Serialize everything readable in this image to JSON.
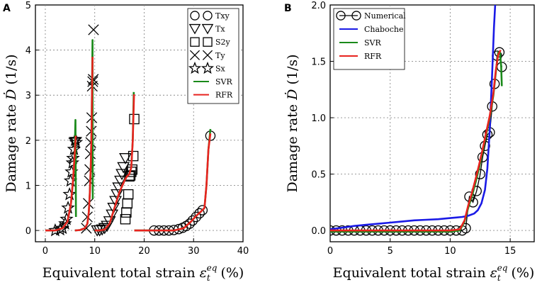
{
  "chart_data": [
    {
      "panel": "A",
      "type": "line",
      "title": "",
      "xlabel": "Equivalent total strain",
      "ylabel": "Damage rate",
      "xlabel_symbol": "ε",
      "xlabel_sub": "t",
      "xlabel_sup": "eq",
      "xlabel_unit": "(%)",
      "ylabel_symbol": "Ḋ",
      "ylabel_unit": "(1/s)",
      "xlim": [
        -2,
        40
      ],
      "ylim": [
        -0.25,
        5
      ],
      "xticks": [
        0,
        10,
        20,
        30,
        40
      ],
      "yticks": [
        0,
        1,
        2,
        3,
        4,
        5
      ],
      "grid": true,
      "legend_position": "top-right",
      "series": [
        {
          "name": "Txy",
          "marker": "circle",
          "x": [
            22,
            23,
            24,
            25,
            26,
            27,
            27.8,
            28.5,
            29.2,
            29.8,
            30.5,
            31.2,
            31.8,
            33.4
          ],
          "y": [
            0,
            0,
            0,
            0,
            0.01,
            0.03,
            0.06,
            0.1,
            0.15,
            0.22,
            0.3,
            0.38,
            0.45,
            2.1
          ]
        },
        {
          "name": "Tx",
          "marker": "triangle-down",
          "x": [
            10.5,
            11,
            11.5,
            12,
            12.5,
            13,
            13.5,
            13.8,
            14.2,
            14.5,
            14.8,
            15.2,
            15.5,
            15.8,
            16.2
          ],
          "y": [
            0,
            0,
            0.02,
            0.05,
            0.1,
            0.2,
            0.35,
            0.5,
            0.65,
            0.8,
            0.95,
            1.1,
            1.25,
            1.4,
            1.6
          ]
        },
        {
          "name": "S2y",
          "marker": "square",
          "x": [
            16.2,
            16.4,
            16.6,
            16.8,
            17,
            17.2,
            17.4,
            17.6,
            17.8,
            18
          ],
          "y": [
            0.25,
            0.4,
            0.6,
            0.8,
            1.2,
            1.22,
            1.3,
            1.35,
            1.65,
            2.47
          ]
        },
        {
          "name": "Ty",
          "marker": "x",
          "x": [
            8.3,
            8.5,
            8.7,
            8.9,
            9.0,
            9.1,
            9.2,
            9.3,
            9.4,
            9.5,
            9.6,
            9.7,
            9.75
          ],
          "y": [
            0.05,
            0.3,
            0.6,
            1.1,
            1.35,
            1.7,
            1.95,
            2.2,
            2.5,
            3.2,
            3.3,
            3.35,
            4.45
          ]
        },
        {
          "name": "Sx",
          "marker": "star",
          "x": [
            2,
            3,
            3.5,
            4,
            4.3,
            4.6,
            4.9,
            5.1,
            5.3,
            5.5,
            5.6,
            5.8,
            6.0,
            6.1,
            6.2
          ],
          "y": [
            0,
            0.02,
            0.05,
            0.15,
            0.25,
            0.5,
            0.8,
            1.1,
            1.3,
            1.5,
            1.6,
            1.8,
            2.0,
            2.02,
            1.95
          ]
        },
        {
          "name": "SVR",
          "line": "green",
          "segments": [
            {
              "x": [
                0,
                2,
                3.5,
                4.5,
                5.2,
                5.6,
                5.9,
                6.0,
                6.1,
                6.2
              ],
              "y": [
                0,
                0,
                0.05,
                0.2,
                0.6,
                1.1,
                1.6,
                2.0,
                2.45,
                0.3
              ]
            },
            {
              "x": [
                6,
                7,
                8,
                8.5,
                8.8,
                9.0,
                9.2,
                9.35,
                9.45,
                9.55,
                9.6
              ],
              "y": [
                0,
                0.01,
                0.05,
                0.15,
                0.4,
                0.8,
                1.4,
                2.2,
                3.2,
                4.22,
                0.7
              ]
            },
            {
              "x": [
                10,
                11,
                12,
                13,
                14,
                15,
                16,
                16.5,
                17,
                17.4,
                17.7,
                17.9
              ],
              "y": [
                0,
                0,
                0.02,
                0.15,
                0.5,
                0.85,
                1.1,
                1.2,
                1.25,
                1.4,
                2.0,
                3.07
              ]
            },
            {
              "x": [
                18,
                20,
                22,
                24,
                26,
                28,
                29.5,
                30.5,
                31.5,
                32.2,
                32.6,
                33,
                33.4
              ],
              "y": [
                0,
                0,
                0,
                0,
                0,
                0.05,
                0.2,
                0.32,
                0.42,
                0.5,
                1.0,
                1.8,
                2.25
              ]
            }
          ]
        },
        {
          "name": "RFR",
          "line": "red",
          "segments": [
            {
              "x": [
                0,
                2,
                3.5,
                4.5,
                5.2,
                5.6,
                5.9,
                6.05,
                6.15
              ],
              "y": [
                0,
                0,
                0.05,
                0.2,
                0.6,
                1.1,
                1.6,
                1.9,
                2.1
              ]
            },
            {
              "x": [
                6,
                7,
                8,
                8.5,
                8.8,
                9.0,
                9.2,
                9.35,
                9.45,
                9.55
              ],
              "y": [
                0,
                0.01,
                0.05,
                0.15,
                0.4,
                0.8,
                1.4,
                2.2,
                3.1,
                3.85
              ]
            },
            {
              "x": [
                10,
                11,
                12,
                13,
                14,
                15,
                16,
                16.5,
                17,
                17.4,
                17.7,
                17.95
              ],
              "y": [
                0,
                0,
                0.02,
                0.15,
                0.5,
                0.85,
                1.1,
                1.2,
                1.25,
                1.4,
                2.0,
                3.02
              ]
            },
            {
              "x": [
                18,
                20,
                22,
                24,
                26,
                28,
                29.5,
                30.5,
                31.5,
                32.2,
                32.6,
                33,
                33.4
              ],
              "y": [
                0,
                0,
                0,
                0,
                0,
                0.05,
                0.2,
                0.32,
                0.42,
                0.5,
                1.0,
                1.8,
                2.15
              ]
            }
          ]
        }
      ]
    },
    {
      "panel": "B",
      "type": "line",
      "title": "",
      "xlabel": "Equivalent total strain",
      "ylabel": "Damage rate",
      "xlabel_symbol": "ε",
      "xlabel_sub": "t",
      "xlabel_sup": "eq",
      "xlabel_unit": "(%)",
      "ylabel_symbol": "Ḋ",
      "ylabel_unit": "(1/s)",
      "xlim": [
        0,
        17
      ],
      "ylim": [
        -0.1,
        2.0
      ],
      "xticks": [
        0,
        5,
        10,
        15
      ],
      "xtick_labels": [
        "0",
        "5",
        "10",
        "15"
      ],
      "yticks": [
        0.0,
        0.5,
        1.0,
        1.5,
        2.0
      ],
      "ytick_labels": [
        "0.0",
        "0.5",
        "1.0",
        "1.5",
        "2.0"
      ],
      "grid": true,
      "legend_position": "top-left",
      "series": [
        {
          "name": "Numerical",
          "marker": "circle",
          "line": "black",
          "x": [
            0,
            0.5,
            1,
            1.5,
            2,
            2.5,
            3,
            3.5,
            4,
            4.5,
            5,
            5.5,
            6,
            6.5,
            7,
            7.5,
            8,
            8.5,
            9,
            9.5,
            10,
            10.5,
            11,
            11.3,
            11.6,
            11.9,
            12.2,
            12.5,
            12.7,
            12.9,
            13.1,
            13.3,
            13.5,
            13.7,
            13.9,
            14.1,
            14.3
          ],
          "y": [
            0,
            0,
            0,
            0,
            0,
            0,
            0,
            0,
            0,
            0,
            0,
            0,
            0,
            0,
            0,
            0,
            0,
            0,
            0,
            0,
            0,
            0,
            0,
            0.02,
            0.3,
            0.25,
            0.35,
            0.5,
            0.65,
            0.75,
            0.85,
            0.87,
            1.1,
            1.3,
            1.55,
            1.58,
            1.45
          ]
        },
        {
          "name": "Chaboche",
          "line": "blue",
          "x": [
            0,
            1,
            2,
            3,
            4,
            5,
            6,
            7,
            8,
            9,
            10,
            10.5,
            11,
            11.5,
            12,
            12.3,
            12.6,
            12.9,
            13.1,
            13.3,
            13.5,
            13.65,
            13.75
          ],
          "y": [
            0.01,
            0.025,
            0.04,
            0.05,
            0.06,
            0.07,
            0.08,
            0.09,
            0.095,
            0.1,
            0.11,
            0.115,
            0.12,
            0.13,
            0.15,
            0.18,
            0.24,
            0.36,
            0.55,
            0.9,
            1.4,
            1.8,
            2.0
          ]
        },
        {
          "name": "SVR",
          "line": "green",
          "x": [
            0,
            2,
            4,
            6,
            8,
            10,
            10.8,
            11.2,
            11.5,
            11.8,
            12.1,
            12.4,
            12.7,
            13.0,
            13.3,
            13.6,
            13.8,
            14.0,
            14.15,
            14.25,
            14.3
          ],
          "y": [
            -0.01,
            -0.01,
            -0.01,
            -0.01,
            -0.01,
            -0.01,
            0.0,
            0.08,
            0.2,
            0.3,
            0.42,
            0.55,
            0.7,
            0.85,
            1.0,
            1.2,
            1.4,
            1.58,
            1.58,
            1.45,
            1.28
          ]
        },
        {
          "name": "RFR",
          "line": "red",
          "x": [
            0,
            2,
            4,
            6,
            8,
            10,
            10.8,
            11.2,
            11.5,
            11.8,
            12.1,
            12.4,
            12.7,
            13.0,
            13.3,
            13.6,
            13.8,
            14.0,
            14.2
          ],
          "y": [
            0,
            0,
            0,
            0,
            0,
            0,
            0.01,
            0.09,
            0.22,
            0.33,
            0.45,
            0.58,
            0.72,
            0.87,
            1.02,
            1.22,
            1.42,
            1.56,
            1.6
          ]
        }
      ]
    }
  ],
  "colors": {
    "svr": "#1a8a1a",
    "rfr": "#e8231f",
    "chaboche": "#1a1ae6",
    "marker": "#000000",
    "grid": "#8c8c8c"
  }
}
